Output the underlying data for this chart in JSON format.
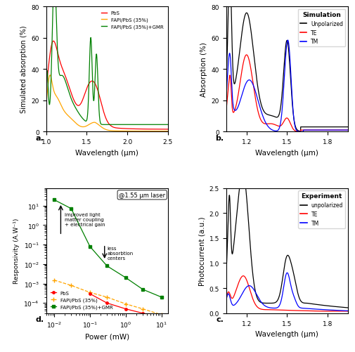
{
  "panel_a": {
    "title": "a.",
    "xlabel": "Wavelength (μm)",
    "ylabel": "Simulated absorption (%)",
    "xlim": [
      1.0,
      2.5
    ],
    "ylim": [
      0,
      80
    ],
    "yticks": [
      0,
      20,
      40,
      60,
      80
    ],
    "xticks": [
      1.0,
      1.5,
      2.0,
      2.5
    ],
    "legend": [
      "PbS",
      "FAPI/PbS (35%)",
      "FAPI/PbS (35%)+GMR"
    ],
    "colors": [
      "red",
      "orange",
      "green"
    ]
  },
  "panel_b": {
    "title": "b.",
    "title_box": "Simulation",
    "xlabel": "Wavelength (μm)",
    "ylabel": "Absorption (%)",
    "xlim": [
      1.05,
      1.95
    ],
    "ylim": [
      0,
      80
    ],
    "yticks": [
      0,
      20,
      40,
      60,
      80
    ],
    "xticks": [
      1.2,
      1.5,
      1.8
    ],
    "legend": [
      "Unpolarized",
      "TE",
      "TM"
    ],
    "colors": [
      "black",
      "red",
      "blue"
    ]
  },
  "panel_c": {
    "title": "c.",
    "title_box": "Experiment",
    "xlabel": "Wavelength (μm)",
    "ylabel": "Photocurrent (a.u.)",
    "xlim": [
      1.05,
      1.95
    ],
    "ylim": [
      0,
      2.5
    ],
    "yticks": [
      0,
      0.5,
      1.0,
      1.5,
      2.0,
      2.5
    ],
    "xticks": [
      1.2,
      1.5,
      1.8
    ],
    "legend": [
      "unpolarized",
      "TE",
      "TM"
    ],
    "colors": [
      "black",
      "red",
      "blue"
    ]
  },
  "panel_d": {
    "title": "d.",
    "annotation1": "@1.55 μm laser",
    "annotation2": "improved light\nmatter coupling\n+ electrical gain",
    "annotation3": "less\nabsorbtion\ncenters",
    "xlabel": "Power (mW)",
    "ylabel": "Responsivity (A.W⁻¹)",
    "legend": [
      "PbS",
      "FAPI/PbS (35%)",
      "FAPI/PbS (35%)+GMR"
    ],
    "colors": [
      "red",
      "orange",
      "green"
    ]
  }
}
